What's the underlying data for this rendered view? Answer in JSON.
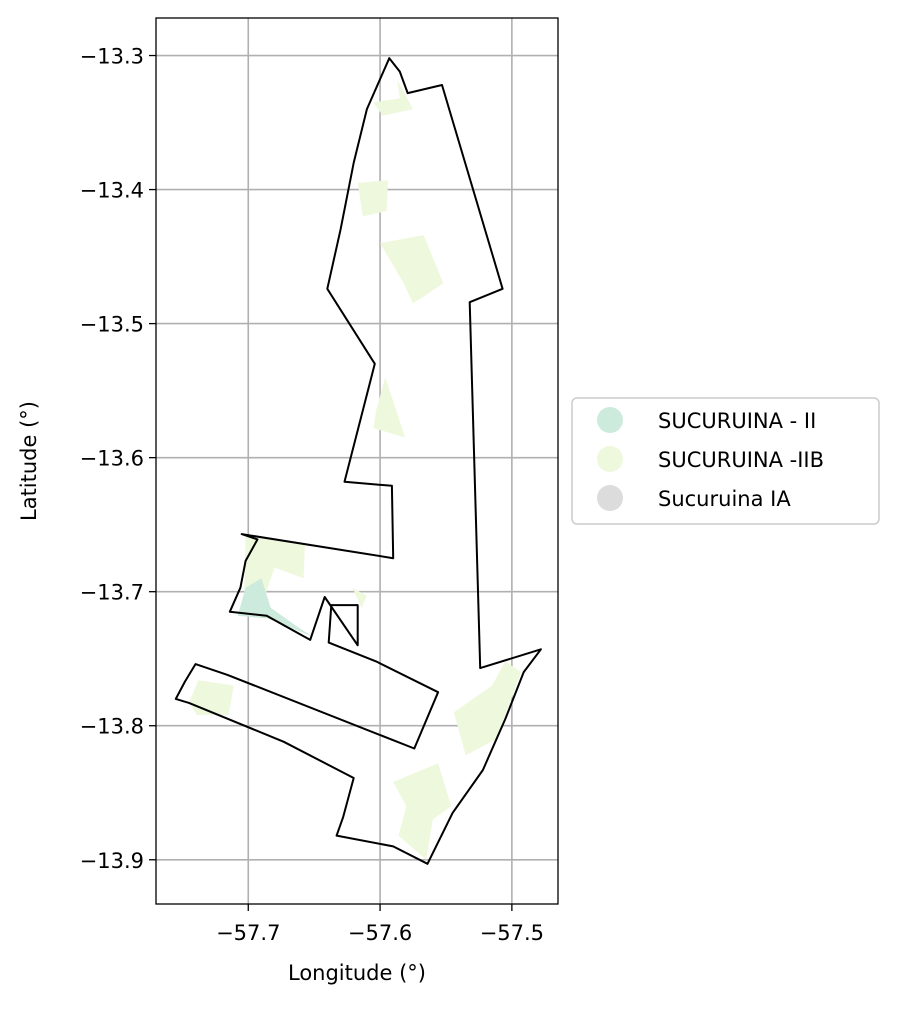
{
  "chart_data": {
    "type": "map",
    "xlabel": "Longitude (°)",
    "ylabel": "Latitude (°)",
    "xlim": [
      -57.77,
      -57.465
    ],
    "ylim": [
      -13.933,
      -13.272
    ],
    "xticks": [
      {
        "value": -57.7,
        "label": "−57.7"
      },
      {
        "value": -57.6,
        "label": "−57.6"
      },
      {
        "value": -57.5,
        "label": "−57.5"
      }
    ],
    "yticks": [
      {
        "value": -13.3,
        "label": "−13.3"
      },
      {
        "value": -13.4,
        "label": "−13.4"
      },
      {
        "value": -13.5,
        "label": "−13.5"
      },
      {
        "value": -13.6,
        "label": "−13.6"
      },
      {
        "value": -13.7,
        "label": "−13.7"
      },
      {
        "value": -13.8,
        "label": "−13.8"
      },
      {
        "value": -13.9,
        "label": "−13.9"
      }
    ],
    "grid": true,
    "legend_position": "right",
    "legend": [
      {
        "label": "SUCURUINA - II",
        "color": "#cdebdc"
      },
      {
        "label": "SUCURUINA -IIB",
        "color": "#eef8dd"
      },
      {
        "label": "Sucuruina IA",
        "color": "#dcdcdc"
      }
    ],
    "boundary": [
      [
        -57.593,
        -13.302
      ],
      [
        -57.585,
        -13.312
      ],
      [
        -57.579,
        -13.328
      ],
      [
        -57.553,
        -13.322
      ],
      [
        -57.507,
        -13.474
      ],
      [
        -57.532,
        -13.484
      ],
      [
        -57.524,
        -13.757
      ],
      [
        -57.478,
        -13.743
      ],
      [
        -57.491,
        -13.76
      ],
      [
        -57.505,
        -13.795
      ],
      [
        -57.522,
        -13.833
      ],
      [
        -57.545,
        -13.865
      ],
      [
        -57.564,
        -13.903
      ],
      [
        -57.59,
        -13.89
      ],
      [
        -57.633,
        -13.882
      ],
      [
        -57.628,
        -13.868
      ],
      [
        -57.62,
        -13.839
      ],
      [
        -57.673,
        -13.812
      ],
      [
        -57.745,
        -13.783
      ],
      [
        -57.755,
        -13.78
      ],
      [
        -57.748,
        -13.767
      ],
      [
        -57.74,
        -13.754
      ],
      [
        -57.716,
        -13.762
      ],
      [
        -57.574,
        -13.817
      ],
      [
        -57.556,
        -13.775
      ],
      [
        -57.603,
        -13.752
      ],
      [
        -57.639,
        -13.738
      ],
      [
        -57.637,
        -13.71
      ],
      [
        -57.617,
        -13.71
      ],
      [
        -57.617,
        -13.74
      ],
      [
        -57.642,
        -13.704
      ],
      [
        -57.653,
        -13.736
      ],
      [
        -57.686,
        -13.718
      ],
      [
        -57.714,
        -13.715
      ],
      [
        -57.706,
        -13.697
      ],
      [
        -57.702,
        -13.677
      ],
      [
        -57.693,
        -13.661
      ],
      [
        -57.705,
        -13.657
      ],
      [
        -57.59,
        -13.675
      ],
      [
        -57.591,
        -13.621
      ],
      [
        -57.627,
        -13.618
      ],
      [
        -57.604,
        -13.53
      ],
      [
        -57.64,
        -13.474
      ],
      [
        -57.63,
        -13.43
      ],
      [
        -57.62,
        -13.38
      ],
      [
        -57.61,
        -13.34
      ]
    ],
    "zones": [
      {
        "class": "SUCURUINA -IIB",
        "points": [
          [
            -57.605,
            -13.335
          ],
          [
            -57.585,
            -13.332
          ],
          [
            -57.587,
            -13.318
          ],
          [
            -57.575,
            -13.34
          ],
          [
            -57.598,
            -13.345
          ]
        ]
      },
      {
        "class": "SUCURUINA -IIB",
        "points": [
          [
            -57.617,
            -13.395
          ],
          [
            -57.594,
            -13.393
          ],
          [
            -57.595,
            -13.416
          ],
          [
            -57.613,
            -13.42
          ]
        ]
      },
      {
        "class": "SUCURUINA -IIB",
        "points": [
          [
            -57.6,
            -13.44
          ],
          [
            -57.567,
            -13.434
          ],
          [
            -57.552,
            -13.47
          ],
          [
            -57.575,
            -13.485
          ],
          [
            -57.582,
            -13.47
          ]
        ]
      },
      {
        "class": "SUCURUINA -IIB",
        "points": [
          [
            -57.603,
            -13.565
          ],
          [
            -57.596,
            -13.54
          ],
          [
            -57.581,
            -13.585
          ],
          [
            -57.605,
            -13.578
          ]
        ]
      },
      {
        "class": "SUCURUINA -IIB",
        "points": [
          [
            -57.702,
            -13.657
          ],
          [
            -57.657,
            -13.664
          ],
          [
            -57.658,
            -13.69
          ],
          [
            -57.68,
            -13.682
          ],
          [
            -57.688,
            -13.705
          ],
          [
            -57.703,
            -13.7
          ]
        ]
      },
      {
        "class": "SUCURUINA -IIB",
        "points": [
          [
            -57.621,
            -13.697
          ],
          [
            -57.61,
            -13.703
          ],
          [
            -57.614,
            -13.712
          ]
        ]
      },
      {
        "class": "SUCURUINA -II",
        "points": [
          [
            -57.702,
            -13.697
          ],
          [
            -57.69,
            -13.69
          ],
          [
            -57.683,
            -13.712
          ],
          [
            -57.66,
            -13.728
          ],
          [
            -57.65,
            -13.734
          ],
          [
            -57.685,
            -13.72
          ],
          [
            -57.708,
            -13.718
          ]
        ]
      },
      {
        "class": "SUCURUINA -IIB",
        "points": [
          [
            -57.745,
            -13.783
          ],
          [
            -57.738,
            -13.766
          ],
          [
            -57.711,
            -13.77
          ],
          [
            -57.715,
            -13.792
          ],
          [
            -57.739,
            -13.792
          ]
        ]
      },
      {
        "class": "SUCURUINA -IIB",
        "points": [
          [
            -57.515,
            -13.77
          ],
          [
            -57.544,
            -13.79
          ],
          [
            -57.535,
            -13.822
          ],
          [
            -57.512,
            -13.81
          ],
          [
            -57.493,
            -13.76
          ],
          [
            -57.505,
            -13.752
          ]
        ]
      },
      {
        "class": "SUCURUINA -IIB",
        "points": [
          [
            -57.565,
            -13.9
          ],
          [
            -57.586,
            -13.882
          ],
          [
            -57.58,
            -13.86
          ],
          [
            -57.59,
            -13.842
          ],
          [
            -57.556,
            -13.828
          ],
          [
            -57.546,
            -13.86
          ],
          [
            -57.56,
            -13.87
          ]
        ]
      }
    ]
  }
}
